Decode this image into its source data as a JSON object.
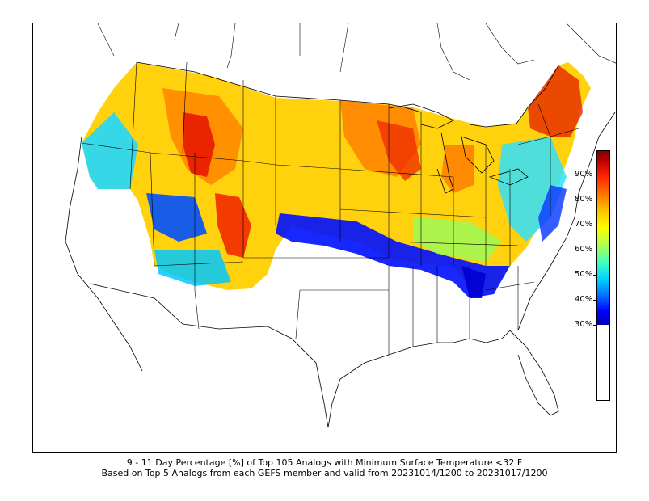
{
  "caption": {
    "line1": "9 - 11 Day Percentage [%] of Top 105 Analogs with Minimum Surface Temperature <32 F",
    "line2": "Based on Top 5 Analogs from each GEFS member and valid from 20231014/1200 to 20231017/1200"
  },
  "colorbar": {
    "ticks": [
      "90%",
      "80%",
      "70%",
      "60%",
      "50%",
      "40%",
      "30%"
    ],
    "min_value": 30,
    "max_value": 100,
    "colors": [
      "#0000b4",
      "#0000ff",
      "#0066ff",
      "#00d0ff",
      "#40ffc0",
      "#b0ff50",
      "#ffff00",
      "#ffc000",
      "#ff7000",
      "#ff2000",
      "#c00000",
      "#800000"
    ]
  },
  "map": {
    "projection": "Lambert Conformal (CONUS)",
    "features": [
      "coastlines",
      "country-borders",
      "state-borders"
    ],
    "field": "percentage of analogs with Tmin < 32 F"
  }
}
